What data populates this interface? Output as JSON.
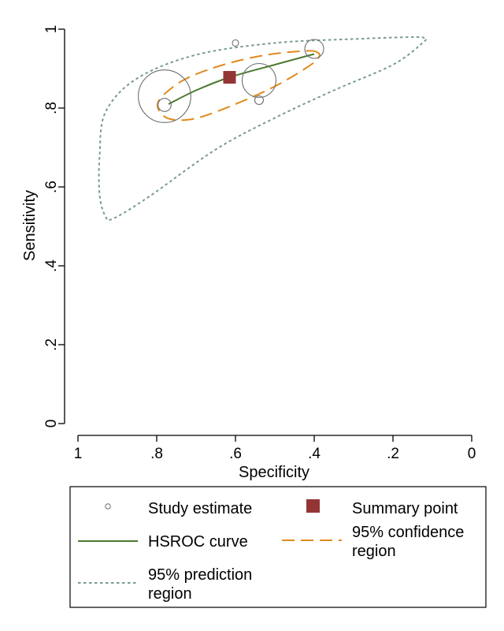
{
  "chart_data": {
    "type": "scatter",
    "title": "",
    "xlabel": "Specificity",
    "ylabel": "Sensitivity",
    "x_reversed": true,
    "xlim": [
      1,
      0
    ],
    "ylim": [
      0,
      1
    ],
    "x_ticks": [
      1,
      0.8,
      0.6,
      0.4,
      0.2,
      0
    ],
    "x_tick_labels": [
      "1",
      ".8",
      ".6",
      ".4",
      ".2",
      "0"
    ],
    "y_ticks": [
      0,
      0.2,
      0.4,
      0.6,
      0.8,
      1
    ],
    "y_tick_labels": [
      "0",
      ".2",
      ".4",
      ".6",
      ".8",
      "1"
    ],
    "grid": false,
    "legend_position": "bottom",
    "colors": {
      "study": "#6e6e6e",
      "summary": "#943535",
      "hsroc": "#4a7a30",
      "confidence": "#e08a1e",
      "prediction": "#7a9a96"
    },
    "studies": [
      {
        "x": 0.78,
        "y": 0.83,
        "size": 0.0667
      },
      {
        "x": 0.78,
        "y": 0.808,
        "size": 0.0167
      },
      {
        "x": 0.54,
        "y": 0.87,
        "size": 0.043
      },
      {
        "x": 0.54,
        "y": 0.82,
        "size": 0.011
      },
      {
        "x": 0.6,
        "y": 0.965,
        "size": 0.008
      },
      {
        "x": 0.4,
        "y": 0.95,
        "size": 0.024
      }
    ],
    "summary_point": {
      "x": 0.615,
      "y": 0.878
    },
    "hsroc_curve": [
      {
        "x": 0.77,
        "y": 0.81
      },
      {
        "x": 0.7,
        "y": 0.845
      },
      {
        "x": 0.615,
        "y": 0.878
      },
      {
        "x": 0.5,
        "y": 0.91
      },
      {
        "x": 0.4,
        "y": 0.937
      }
    ],
    "confidence_region": [
      {
        "x": 0.39,
        "y": 0.94
      },
      {
        "x": 0.42,
        "y": 0.945
      },
      {
        "x": 0.52,
        "y": 0.935
      },
      {
        "x": 0.63,
        "y": 0.91
      },
      {
        "x": 0.73,
        "y": 0.872
      },
      {
        "x": 0.79,
        "y": 0.825
      },
      {
        "x": 0.795,
        "y": 0.795
      },
      {
        "x": 0.765,
        "y": 0.772
      },
      {
        "x": 0.7,
        "y": 0.774
      },
      {
        "x": 0.6,
        "y": 0.81
      },
      {
        "x": 0.5,
        "y": 0.855
      },
      {
        "x": 0.42,
        "y": 0.902
      },
      {
        "x": 0.39,
        "y": 0.926
      }
    ],
    "prediction_region": [
      {
        "x": 0.12,
        "y": 0.977
      },
      {
        "x": 0.15,
        "y": 0.98
      },
      {
        "x": 0.3,
        "y": 0.975
      },
      {
        "x": 0.5,
        "y": 0.965
      },
      {
        "x": 0.7,
        "y": 0.935
      },
      {
        "x": 0.85,
        "y": 0.875
      },
      {
        "x": 0.93,
        "y": 0.79
      },
      {
        "x": 0.945,
        "y": 0.68
      },
      {
        "x": 0.945,
        "y": 0.58
      },
      {
        "x": 0.93,
        "y": 0.525
      },
      {
        "x": 0.91,
        "y": 0.52
      },
      {
        "x": 0.82,
        "y": 0.575
      },
      {
        "x": 0.65,
        "y": 0.695
      },
      {
        "x": 0.5,
        "y": 0.775
      },
      {
        "x": 0.35,
        "y": 0.845
      },
      {
        "x": 0.2,
        "y": 0.91
      },
      {
        "x": 0.125,
        "y": 0.965
      }
    ],
    "legend": {
      "study": "Study estimate",
      "summary": "Summary point",
      "hsroc": "HSROC curve",
      "confidence_1": "95% confidence",
      "confidence_2": "region",
      "prediction_1": "95% prediction",
      "prediction_2": "region"
    }
  }
}
